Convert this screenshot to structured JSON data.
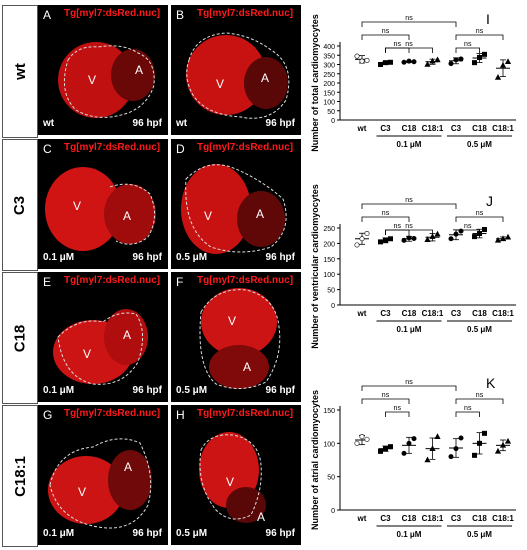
{
  "rows": [
    {
      "label": "wt",
      "top": 5,
      "h": 131
    },
    {
      "label": "C3",
      "top": 139,
      "h": 130
    },
    {
      "label": "C18",
      "top": 272,
      "h": 130
    },
    {
      "label": "C18:1",
      "top": 405,
      "h": 140
    }
  ],
  "panels": [
    {
      "letter": "A",
      "title": "Tg[myl7:dsRed.nuc]",
      "bl": "wt",
      "br": "96 hpf",
      "v": "V",
      "a": "A"
    },
    {
      "letter": "B",
      "title": "Tg[myl7:dsRed.nuc]",
      "bl": "wt",
      "br": "96 hpf",
      "v": "V",
      "a": "A"
    },
    {
      "letter": "C",
      "title": "Tg[myl7:dsRed.nuc]",
      "bl": "0.1 μM",
      "br": "96 hpf",
      "v": "V",
      "a": "A"
    },
    {
      "letter": "D",
      "title": "Tg[myl7:dsRed.nuc]",
      "bl": "0.5 μM",
      "br": "96 hpf",
      "v": "V",
      "a": "A"
    },
    {
      "letter": "E",
      "title": "Tg[myl7:dsRed.nuc]",
      "bl": "0.1 μM",
      "br": "96 hpf",
      "v": "V",
      "a": "A"
    },
    {
      "letter": "F",
      "title": "Tg[myl7:dsRed.nuc]",
      "bl": "0.5 μM",
      "br": "96 hpf",
      "v": "V",
      "a": "A"
    },
    {
      "letter": "G",
      "title": "Tg[myl7:dsRed.nuc]",
      "bl": "0.1 μM",
      "br": "96 hpf",
      "v": "V",
      "a": "A"
    },
    {
      "letter": "H",
      "title": "Tg[myl7:dsRed.nuc]",
      "bl": "0.5 μM",
      "br": "96 hpf",
      "v": "V",
      "a": "A"
    }
  ],
  "chart_data": [
    {
      "panel": "I",
      "type": "scatter",
      "ylabel": "Number of total cardiomyocytes",
      "ylim": [
        0,
        400
      ],
      "yticks": [
        0,
        50,
        100,
        150,
        200,
        250,
        300,
        350,
        400
      ],
      "categories": [
        "wt",
        "C3",
        "C18",
        "C18:1",
        "C3",
        "C18",
        "C18:1"
      ],
      "groups": [
        {
          "label": "0.1 μM",
          "from": 1,
          "to": 3
        },
        {
          "label": "0.5 μM",
          "from": 4,
          "to": 6
        }
      ],
      "means": [
        328,
        308,
        315,
        315,
        320,
        335,
        280
      ],
      "sd": [
        20,
        8,
        4,
        14,
        16,
        24,
        45
      ],
      "points": [
        [
          345,
          318,
          322
        ],
        [
          300,
          310,
          312
        ],
        [
          312,
          318,
          315
        ],
        [
          300,
          318,
          325
        ],
        [
          305,
          325,
          330
        ],
        [
          310,
          338,
          355
        ],
        [
          230,
          295,
          315
        ]
      ],
      "comparisons": [
        {
          "a": 0,
          "b": 4,
          "label": "ns"
        },
        {
          "a": 0,
          "b": 2,
          "label": "ns"
        },
        {
          "a": 4,
          "b": 6,
          "label": "ns"
        },
        {
          "a": 1,
          "b": 2,
          "label": "ns"
        },
        {
          "a": 1,
          "b": 3,
          "label": "ns"
        },
        {
          "a": 4,
          "b": 5,
          "label": "ns"
        }
      ]
    },
    {
      "panel": "J",
      "type": "scatter",
      "ylabel": "Number of ventricular cardiomyocytes",
      "ylim": [
        0,
        250
      ],
      "yticks": [
        0,
        50,
        100,
        150,
        200,
        250
      ],
      "categories": [
        "wt",
        "C3",
        "C18",
        "C18:1",
        "C3",
        "C18",
        "C18:1"
      ],
      "groups": [
        {
          "label": "0.1 μM",
          "from": 1,
          "to": 3
        },
        {
          "label": "0.5 μM",
          "from": 4,
          "to": 6
        }
      ],
      "means": [
        215,
        210,
        215,
        220,
        228,
        232,
        215
      ],
      "sd": [
        18,
        8,
        8,
        12,
        16,
        14,
        6
      ],
      "points": [
        [
          195,
          215,
          232
        ],
        [
          205,
          210,
          215
        ],
        [
          210,
          218,
          216
        ],
        [
          212,
          222,
          230
        ],
        [
          215,
          230,
          240
        ],
        [
          222,
          232,
          245
        ],
        [
          210,
          215,
          220
        ]
      ],
      "comparisons": [
        {
          "a": 0,
          "b": 4,
          "label": "ns"
        },
        {
          "a": 0,
          "b": 2,
          "label": "ns"
        },
        {
          "a": 4,
          "b": 6,
          "label": "ns"
        },
        {
          "a": 1,
          "b": 2,
          "label": "ns"
        },
        {
          "a": 1,
          "b": 3,
          "label": "ns"
        },
        {
          "a": 4,
          "b": 5,
          "label": "ns"
        }
      ]
    },
    {
      "panel": "K",
      "type": "scatter",
      "ylabel": "Number of atrial cardiomyocytes",
      "ylim": [
        0,
        150
      ],
      "yticks": [
        0,
        50,
        100,
        150
      ],
      "categories": [
        "wt",
        "C3",
        "C18",
        "C18:1",
        "C3",
        "C18",
        "C18:1"
      ],
      "groups": [
        {
          "label": "0.1 μM",
          "from": 1,
          "to": 3
        },
        {
          "label": "0.5 μM",
          "from": 4,
          "to": 6
        }
      ],
      "means": [
        105,
        92,
        97,
        92,
        93,
        100,
        97
      ],
      "sd": [
        7,
        4,
        12,
        16,
        14,
        16,
        8
      ],
      "points": [
        [
          100,
          110,
          106
        ],
        [
          88,
          92,
          95
        ],
        [
          85,
          100,
          107
        ],
        [
          75,
          92,
          110
        ],
        [
          80,
          92,
          108
        ],
        [
          82,
          100,
          115
        ],
        [
          88,
          97,
          103
        ]
      ],
      "comparisons": [
        {
          "a": 0,
          "b": 4,
          "label": "ns"
        },
        {
          "a": 0,
          "b": 2,
          "label": "ns"
        },
        {
          "a": 4,
          "b": 6,
          "label": "ns"
        },
        {
          "a": 1,
          "b": 2,
          "label": "ns"
        },
        {
          "a": 4,
          "b": 5,
          "label": "ns"
        }
      ]
    }
  ]
}
